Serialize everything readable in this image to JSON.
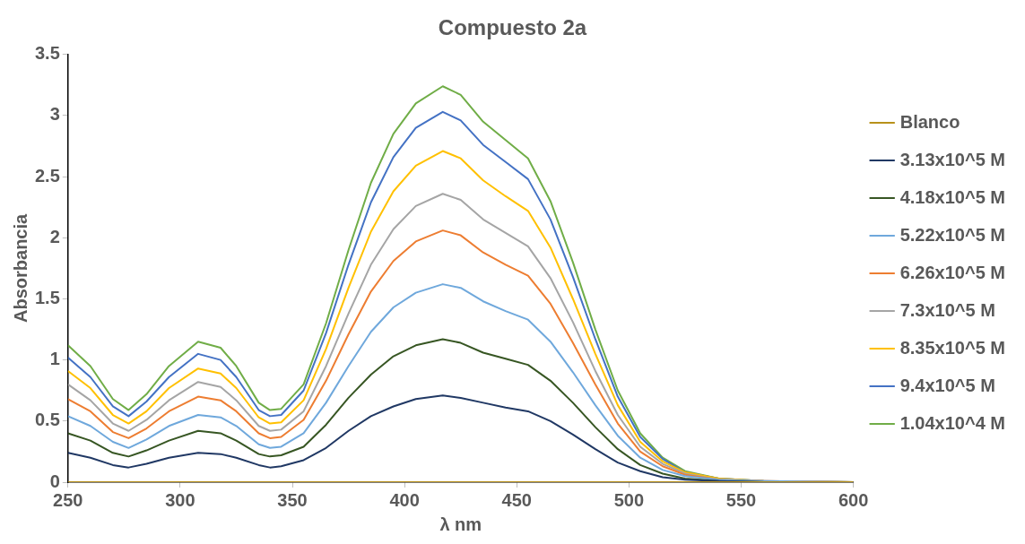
{
  "chart_data": {
    "type": "line",
    "title": "Compuesto 2a",
    "xlabel": "λ nm",
    "ylabel": "Absorbancia",
    "x": [
      250,
      260,
      270,
      277,
      285,
      295,
      308,
      318,
      325,
      335,
      340,
      345,
      355,
      365,
      375,
      385,
      395,
      405,
      417,
      425,
      435,
      445,
      455,
      465,
      475,
      485,
      495,
      505,
      515,
      525,
      540,
      560,
      600
    ],
    "xlim": [
      250,
      600
    ],
    "xticks": [
      250,
      300,
      350,
      400,
      450,
      500,
      550,
      600
    ],
    "ylim": [
      0,
      3.5
    ],
    "yticks": [
      0,
      0.5,
      1,
      1.5,
      2,
      2.5,
      3,
      3.5
    ],
    "grid": false,
    "legend": "right",
    "marker": "none",
    "line_style": "solid",
    "series": [
      {
        "name": "Blanco",
        "color": "#b8911a",
        "values": [
          0,
          0,
          0,
          0,
          0,
          0,
          0,
          0,
          0,
          0,
          0,
          0,
          0,
          0,
          0,
          0,
          0,
          0,
          0,
          0,
          0,
          0,
          0,
          0,
          0,
          0,
          0,
          0,
          0,
          0,
          0,
          0,
          0
        ]
      },
      {
        "name": "3.13x10^5 M",
        "color": "#203864",
        "values": [
          0.24,
          0.2,
          0.14,
          0.12,
          0.15,
          0.2,
          0.24,
          0.23,
          0.2,
          0.14,
          0.12,
          0.13,
          0.18,
          0.28,
          0.42,
          0.54,
          0.62,
          0.68,
          0.71,
          0.69,
          0.65,
          0.61,
          0.58,
          0.5,
          0.39,
          0.27,
          0.16,
          0.09,
          0.04,
          0.02,
          0.01,
          0,
          0
        ]
      },
      {
        "name": "4.18x10^5 M",
        "color": "#375623",
        "values": [
          0.4,
          0.34,
          0.24,
          0.21,
          0.26,
          0.34,
          0.42,
          0.4,
          0.34,
          0.23,
          0.21,
          0.22,
          0.29,
          0.47,
          0.69,
          0.88,
          1.03,
          1.12,
          1.17,
          1.14,
          1.06,
          1.01,
          0.96,
          0.83,
          0.65,
          0.45,
          0.27,
          0.14,
          0.07,
          0.03,
          0.01,
          0,
          0
        ]
      },
      {
        "name": "5.22x10^5 M",
        "color": "#6fa8dc",
        "values": [
          0.54,
          0.46,
          0.33,
          0.28,
          0.35,
          0.46,
          0.55,
          0.53,
          0.46,
          0.31,
          0.28,
          0.29,
          0.4,
          0.65,
          0.95,
          1.23,
          1.43,
          1.55,
          1.62,
          1.59,
          1.48,
          1.4,
          1.33,
          1.15,
          0.9,
          0.63,
          0.38,
          0.2,
          0.1,
          0.05,
          0.02,
          0.01,
          0
        ]
      },
      {
        "name": "6.26x10^5 M",
        "color": "#ed7d31",
        "values": [
          0.68,
          0.58,
          0.41,
          0.36,
          0.44,
          0.58,
          0.7,
          0.67,
          0.58,
          0.4,
          0.36,
          0.37,
          0.51,
          0.83,
          1.21,
          1.56,
          1.81,
          1.97,
          2.06,
          2.02,
          1.88,
          1.78,
          1.69,
          1.46,
          1.14,
          0.8,
          0.48,
          0.25,
          0.13,
          0.06,
          0.02,
          0.01,
          0
        ]
      },
      {
        "name": "7.3x10^5 M",
        "color": "#a5a5a5",
        "values": [
          0.8,
          0.67,
          0.48,
          0.42,
          0.51,
          0.67,
          0.82,
          0.78,
          0.67,
          0.46,
          0.42,
          0.43,
          0.58,
          0.95,
          1.38,
          1.78,
          2.07,
          2.26,
          2.36,
          2.31,
          2.15,
          2.04,
          1.93,
          1.67,
          1.31,
          0.91,
          0.55,
          0.29,
          0.15,
          0.07,
          0.02,
          0.01,
          0
        ]
      },
      {
        "name": "8.35x10^5 M",
        "color": "#ffc000",
        "values": [
          0.91,
          0.77,
          0.55,
          0.48,
          0.58,
          0.77,
          0.93,
          0.89,
          0.77,
          0.53,
          0.48,
          0.49,
          0.67,
          1.09,
          1.59,
          2.05,
          2.38,
          2.59,
          2.71,
          2.65,
          2.47,
          2.34,
          2.22,
          1.92,
          1.5,
          1.05,
          0.63,
          0.33,
          0.17,
          0.08,
          0.03,
          0.01,
          0
        ]
      },
      {
        "name": "9.4x10^5 M",
        "color": "#4472c4",
        "values": [
          1.02,
          0.86,
          0.62,
          0.54,
          0.66,
          0.86,
          1.05,
          1,
          0.86,
          0.59,
          0.54,
          0.55,
          0.75,
          1.22,
          1.78,
          2.29,
          2.66,
          2.9,
          3.03,
          2.96,
          2.76,
          2.62,
          2.48,
          2.15,
          1.68,
          1.17,
          0.7,
          0.37,
          0.19,
          0.08,
          0.03,
          0.01,
          0
        ]
      },
      {
        "name": "1.04x10^4 M",
        "color": "#70ad47",
        "values": [
          1.12,
          0.95,
          0.68,
          0.59,
          0.72,
          0.95,
          1.15,
          1.1,
          0.95,
          0.65,
          0.59,
          0.6,
          0.8,
          1.3,
          1.9,
          2.45,
          2.85,
          3.1,
          3.24,
          3.17,
          2.95,
          2.8,
          2.65,
          2.3,
          1.8,
          1.25,
          0.75,
          0.4,
          0.2,
          0.09,
          0.03,
          0.01,
          0
        ]
      }
    ]
  }
}
